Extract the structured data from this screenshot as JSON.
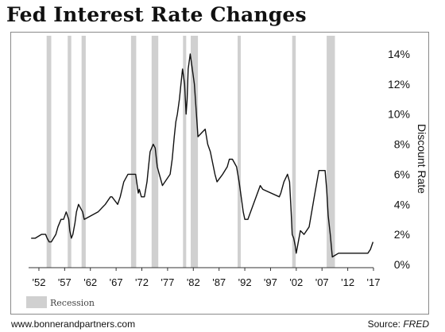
{
  "title": "Fed Interest Rate Changes",
  "footer": {
    "url": "www.bonnerandpartners.com",
    "source_label": "Source:",
    "source_name": "FRED"
  },
  "colors": {
    "line": "#111111",
    "recession": "#d0d0d0",
    "axis": "#333333"
  },
  "chart_data": {
    "type": "line",
    "title": "Fed Interest Rate Changes",
    "xlabel": "",
    "ylabel": "Discount Rate",
    "xlim": [
      1950,
      2017
    ],
    "ylim": [
      0,
      14
    ],
    "x_ticks": [
      1952,
      1957,
      1962,
      1967,
      1972,
      1977,
      1982,
      1987,
      1992,
      1997,
      2002,
      2007,
      2012,
      2017
    ],
    "x_tick_labels": [
      "'52",
      "'57",
      "'62",
      "'67",
      "'72",
      "'77",
      "'82",
      "'87",
      "'92",
      "'97",
      "'02",
      "'07",
      "'12",
      "'17"
    ],
    "y_ticks": [
      0,
      2,
      4,
      6,
      8,
      10,
      12,
      14
    ],
    "y_tick_labels": [
      "0%",
      "2%",
      "4%",
      "6%",
      "8%",
      "10%",
      "12%",
      "14%"
    ],
    "y_axis_position": "right",
    "grid": false,
    "legend": [
      {
        "label": "Recession",
        "swatch": "gray-box"
      }
    ],
    "legend_position": "bottom-left",
    "recessions": [
      [
        1953.5,
        1954.4
      ],
      [
        1957.6,
        1958.3
      ],
      [
        1960.3,
        1961.1
      ],
      [
        1969.9,
        1970.9
      ],
      [
        1973.9,
        1975.2
      ],
      [
        1980.0,
        1980.6
      ],
      [
        1981.5,
        1982.9
      ],
      [
        1990.6,
        1991.2
      ],
      [
        2001.2,
        2001.9
      ],
      [
        2007.9,
        2009.5
      ]
    ],
    "series": [
      {
        "x": [
          1950.5,
          1951.3,
          1952.5,
          1953.3,
          1953.6,
          1954.0,
          1954.4,
          1955.3,
          1955.7,
          1956.3,
          1956.8,
          1957.3,
          1957.8,
          1958.0,
          1958.3,
          1958.6,
          1959.0,
          1959.3,
          1959.7,
          1960.5,
          1960.8,
          1963.5,
          1964.9,
          1965.9,
          1966.2,
          1967.3,
          1967.8,
          1968.5,
          1969.3,
          1970.8,
          1971.3,
          1971.5,
          1971.9,
          1972.5,
          1973.0,
          1973.3,
          1973.6,
          1974.2,
          1974.6,
          1975.0,
          1975.4,
          1976.0,
          1977.5,
          1977.9,
          1978.3,
          1978.6,
          1978.9,
          1979.3,
          1979.6,
          1979.9,
          1980.3,
          1980.6,
          1980.8,
          1981.0,
          1981.4,
          1981.8,
          1982.2,
          1982.6,
          1982.9,
          1984.3,
          1984.8,
          1985.3,
          1986.2,
          1986.6,
          1987.7,
          1988.6,
          1989.0,
          1989.6,
          1990.4,
          1990.9,
          1991.3,
          1991.7,
          1992.0,
          1992.6,
          1995.0,
          1995.5,
          1998.7,
          1999.0,
          1999.6,
          2000.3,
          2000.7,
          2001.0,
          2001.2,
          2001.5,
          2001.8,
          2002.0,
          2002.8,
          2003.5,
          2004.5,
          2005.5,
          2006.4,
          2007.6,
          2007.9,
          2008.2,
          2008.6,
          2009.0,
          2010.2,
          2015.9,
          2016.4,
          2016.9
        ],
        "y": [
          1.75,
          1.75,
          2.0,
          2.0,
          1.75,
          1.5,
          1.5,
          2.0,
          2.5,
          3.0,
          3.0,
          3.5,
          3.0,
          2.25,
          1.75,
          2.0,
          2.75,
          3.5,
          4.0,
          3.5,
          3.0,
          3.5,
          4.0,
          4.5,
          4.5,
          4.0,
          4.5,
          5.5,
          6.0,
          6.0,
          4.75,
          5.0,
          4.5,
          4.5,
          5.5,
          6.5,
          7.5,
          8.0,
          7.75,
          6.5,
          6.0,
          5.25,
          6.0,
          7.0,
          8.5,
          9.5,
          10.0,
          11.0,
          12.0,
          13.0,
          12.0,
          10.0,
          11.0,
          13.0,
          14.0,
          13.0,
          12.0,
          10.0,
          8.5,
          9.0,
          8.0,
          7.5,
          6.0,
          5.5,
          6.0,
          6.5,
          7.0,
          7.0,
          6.5,
          5.5,
          4.5,
          3.5,
          3.0,
          3.0,
          5.25,
          5.0,
          4.5,
          4.75,
          5.5,
          6.0,
          5.5,
          3.5,
          2.0,
          1.75,
          1.25,
          0.75,
          2.25,
          2.0,
          2.5,
          4.5,
          6.25,
          6.25,
          5.0,
          3.25,
          2.0,
          0.5,
          0.75,
          0.75,
          1.0,
          1.5
        ]
      }
    ]
  }
}
